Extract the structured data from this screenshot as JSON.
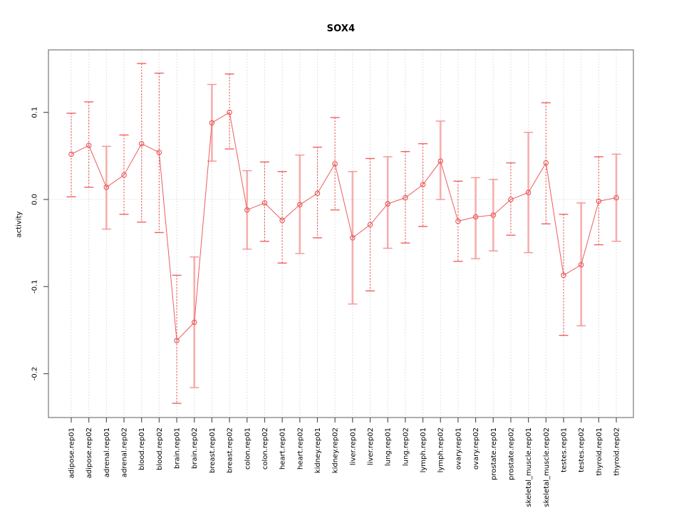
{
  "page": {
    "background": "#ffffff"
  },
  "chart_data": {
    "type": "line",
    "title": "SOX4",
    "xlabel": "",
    "ylabel": "activity",
    "legend": "none",
    "grid": {
      "vertical": "dotted line at every category",
      "horizontal": "dotted line at y=0 only"
    },
    "ylim": [
      -0.2503,
      0.1717
    ],
    "yticks": [
      {
        "value": 0.1,
        "label": "0.1"
      },
      {
        "value": 0.0,
        "label": "0.0"
      },
      {
        "value": -0.1,
        "label": "-0.1"
      },
      {
        "value": -0.2,
        "label": "-0.2"
      }
    ],
    "categories": [
      "adipose.rep01",
      "adipose.rep02",
      "adrenal.rep01",
      "adrenal.rep02",
      "blood.rep01",
      "blood.rep02",
      "brain.rep01",
      "brain.rep02",
      "breast.rep01",
      "breast.rep02",
      "colon.rep01",
      "colon.rep02",
      "heart.rep01",
      "heart.rep02",
      "kidney.rep01",
      "kidney.rep02",
      "liver.rep01",
      "liver.rep02",
      "lung.rep01",
      "lung.rep02",
      "lymph.rep01",
      "lymph.rep02",
      "ovary.rep01",
      "ovary.rep02",
      "prostate.rep01",
      "prostate.rep02",
      "skeletal_muscle.rep01",
      "skeletal_muscle.rep02",
      "testes.rep01",
      "testes.rep02",
      "thyroid.rep01",
      "thyroid.rep02"
    ],
    "series": [
      {
        "name": "activity",
        "marker": "open-circle",
        "values": [
          0.052,
          0.062,
          0.014,
          0.028,
          0.064,
          0.054,
          -0.162,
          -0.141,
          0.088,
          0.1,
          -0.012,
          -0.004,
          -0.024,
          -0.006,
          0.007,
          0.041,
          -0.044,
          -0.029,
          -0.005,
          0.002,
          0.017,
          0.044,
          -0.025,
          -0.02,
          -0.018,
          0.0,
          0.008,
          0.042,
          -0.087,
          -0.075,
          -0.002,
          0.002
        ],
        "error_high": [
          0.099,
          0.112,
          0.061,
          0.074,
          0.156,
          0.145,
          -0.087,
          -0.066,
          0.132,
          0.144,
          0.033,
          0.043,
          0.032,
          0.051,
          0.06,
          0.094,
          0.032,
          0.047,
          0.049,
          0.055,
          0.064,
          0.09,
          0.021,
          0.025,
          0.023,
          0.042,
          0.077,
          0.111,
          -0.017,
          -0.004,
          0.049,
          0.052
        ],
        "error_low": [
          0.003,
          0.014,
          -0.034,
          -0.017,
          -0.026,
          -0.038,
          -0.234,
          -0.216,
          0.044,
          0.058,
          -0.057,
          -0.048,
          -0.073,
          -0.062,
          -0.044,
          -0.012,
          -0.12,
          -0.105,
          -0.056,
          -0.05,
          -0.031,
          0.0,
          -0.071,
          -0.068,
          -0.059,
          -0.041,
          -0.061,
          -0.028,
          -0.156,
          -0.145,
          -0.052,
          -0.048
        ],
        "bar_styles": [
          "dashed",
          "dashed",
          "solid",
          "dashed",
          "dashed",
          "dashed",
          "dashed",
          "solid",
          "solid",
          "dashed",
          "solid",
          "dashed",
          "dashed",
          "solid",
          "dashed",
          "dashed",
          "solid",
          "dashed",
          "solid",
          "dashed",
          "dashed",
          "solid",
          "dashed",
          "solid",
          "solid",
          "dashed",
          "solid",
          "dashed",
          "dashed",
          "solid",
          "dashed",
          "solid"
        ]
      }
    ],
    "colors": {
      "point": "#e85252",
      "line": "#ee5c5c",
      "bar_dashed": "#ef5350",
      "bar_dashed_cap": "#f26060",
      "bar_solid": "#f7aeae",
      "bar_solid_cap": "#f39494",
      "grid": "#d8d8d8",
      "box": "#777777",
      "tick": "#555555",
      "text": "#000000"
    }
  }
}
